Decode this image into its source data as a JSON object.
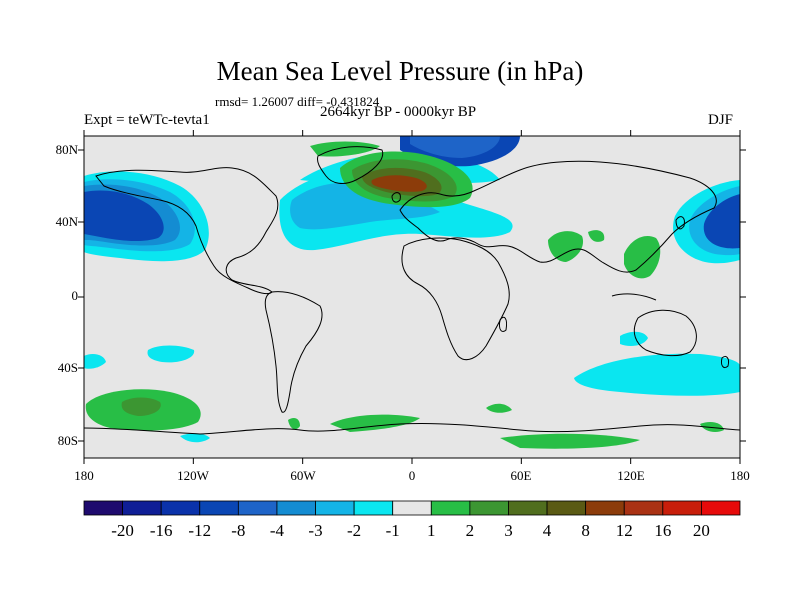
{
  "title": "Mean Sea Level Pressure (in hPa)",
  "stats": "rmsd= 1.26007 diff= -0.431824",
  "experiment": "Expt = teWTc-tevta1",
  "period": "2664kyr BP - 0000kyr BP",
  "season": "DJF",
  "axes": {
    "lat_labels": [
      "80N",
      "40N",
      "0",
      "40S",
      "80S"
    ],
    "lon_labels": [
      "180",
      "120W",
      "60W",
      "0",
      "60E",
      "120E",
      "180"
    ]
  },
  "colorbar": {
    "colors": [
      "#1e0a6e",
      "#0f1e96",
      "#0a32aa",
      "#0a46b4",
      "#1e64c8",
      "#148cd2",
      "#14b4e6",
      "#0ae6f0",
      "#e6e6e6",
      "#28be46",
      "#3c9632",
      "#506e1e",
      "#5a5a14",
      "#8c3c0a",
      "#aa3214",
      "#c81e0a",
      "#e60a0a"
    ],
    "labels": [
      "-20",
      "-16",
      "-12",
      "-8",
      "-4",
      "-3",
      "-2",
      "-1",
      "1",
      "2",
      "3",
      "4",
      "8",
      "12",
      "16",
      "20"
    ]
  },
  "fill_colors": {
    "neutral": "#e6e6e6",
    "cyan": "#0ae6f0",
    "lightblue": "#14b4e6",
    "midblue": "#148cd2",
    "blue": "#1e64c8",
    "darkblue": "#0a46b4",
    "green": "#28be46",
    "darkgreen": "#3c9632",
    "olive": "#506e1e",
    "brown": "#8c3c0a"
  }
}
